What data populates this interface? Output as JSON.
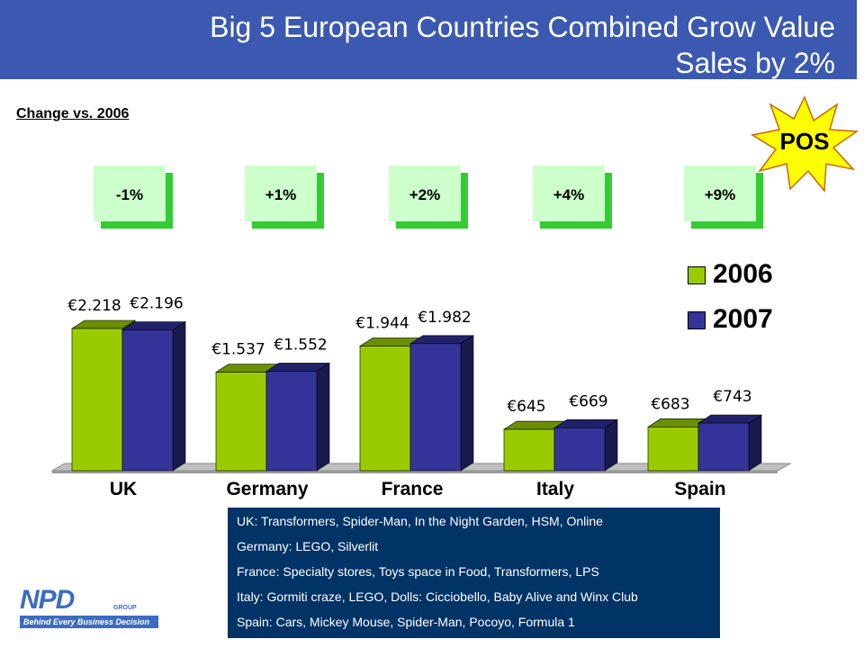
{
  "title": {
    "line1": "Big 5 European Countries Combined Grow Value",
    "line2": "Sales by 2%"
  },
  "subtitle": "Change vs. 2006",
  "badge": "POS",
  "colors": {
    "y2006": "#99cc00",
    "y2007": "#333399",
    "title_bg": "#3b59b0",
    "info_bg": "#003366",
    "badge": "#ffff00"
  },
  "chart_data": {
    "type": "bar",
    "categories": [
      "UK",
      "Germany",
      "France",
      "Italy",
      "Spain"
    ],
    "series": [
      {
        "name": "2006",
        "values": [
          2218,
          1537,
          1944,
          645,
          683
        ],
        "labels": [
          "€2.218",
          "€1.537",
          "€1.944",
          "€645",
          "€683"
        ]
      },
      {
        "name": "2007",
        "values": [
          2196,
          1552,
          1982,
          669,
          743
        ],
        "labels": [
          "€2.196",
          "€1.552",
          "€1.982",
          "€669",
          "€743"
        ]
      }
    ],
    "change": [
      "-1%",
      "+1%",
      "+2%",
      "+4%",
      "+9%"
    ],
    "legend_position": "top-right",
    "grid": false
  },
  "info": [
    "UK: Transformers, Spider-Man, In the Night Garden, HSM, Online",
    "Germany: LEGO, Silverlit",
    "France: Specialty stores, Toys space in Food, Transformers, LPS",
    "Italy: Gormiti craze, LEGO, Dolls: Cicciobello, Baby Alive and Winx Club",
    "Spain: Cars, Mickey Mouse, Spider-Man, Pocoyo, Formula 1"
  ],
  "logo": {
    "name": "NPD",
    "group": "GROUP",
    "tagline": "Behind Every Business Decision"
  }
}
